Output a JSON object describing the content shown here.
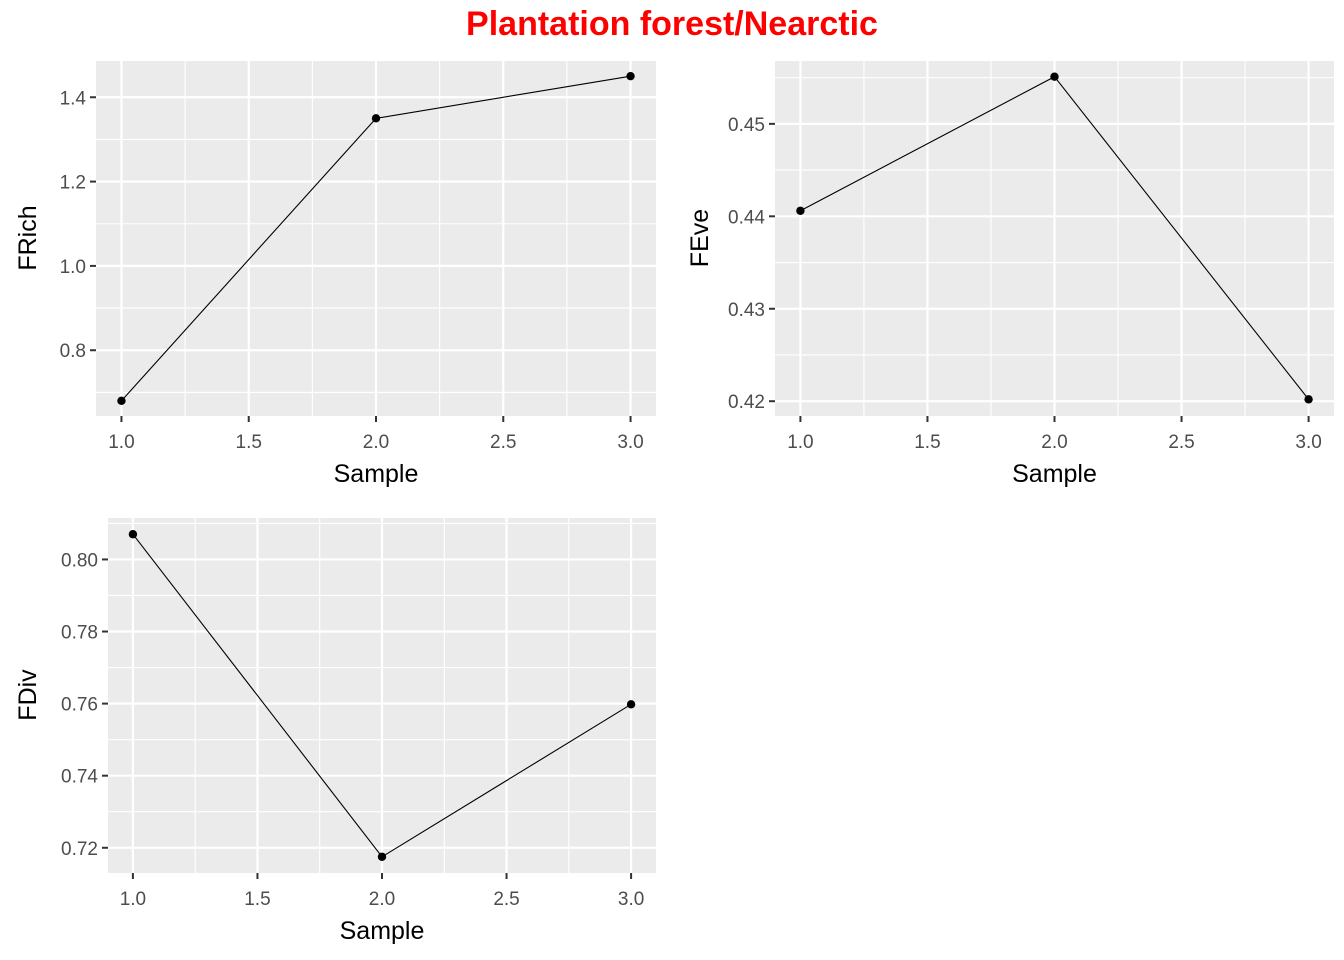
{
  "title": "Plantation forest/Nearctic",
  "colors": {
    "title": "#FF0000",
    "panel_bg": "#EBEBEB",
    "grid": "#FFFFFF",
    "line": "#000000",
    "tick_text": "#4D4D4D"
  },
  "chart_data": [
    {
      "type": "line",
      "title": "",
      "xlabel": "Sample",
      "ylabel": "FRich",
      "x": [
        1.0,
        2.0,
        3.0
      ],
      "series": [
        {
          "values": [
            0.68,
            1.35,
            1.45
          ]
        }
      ],
      "xlim": [
        0.9,
        3.1
      ],
      "ylim": [
        0.644,
        1.486
      ],
      "xticks": [
        1.0,
        1.5,
        2.0,
        2.5,
        3.0
      ],
      "xtick_labels": [
        "1.0",
        "1.5",
        "2.0",
        "2.5",
        "3.0"
      ],
      "yticks": [
        0.8,
        1.0,
        1.2,
        1.4
      ],
      "ytick_labels": [
        "0.8",
        "1.0",
        "1.2",
        "1.4"
      ],
      "grid": true,
      "legend": "none"
    },
    {
      "type": "line",
      "title": "",
      "xlabel": "Sample",
      "ylabel": "FEve",
      "x": [
        1.0,
        2.0,
        3.0
      ],
      "series": [
        {
          "values": [
            0.4406,
            0.4551,
            0.4202
          ]
        }
      ],
      "xlim": [
        0.9,
        3.1
      ],
      "ylim": [
        0.4184,
        0.4568
      ],
      "xticks": [
        1.0,
        1.5,
        2.0,
        2.5,
        3.0
      ],
      "xtick_labels": [
        "1.0",
        "1.5",
        "2.0",
        "2.5",
        "3.0"
      ],
      "yticks": [
        0.42,
        0.43,
        0.44,
        0.45
      ],
      "ytick_labels": [
        "0.42",
        "0.43",
        "0.44",
        "0.45"
      ],
      "grid": true,
      "legend": "none"
    },
    {
      "type": "line",
      "title": "",
      "xlabel": "Sample",
      "ylabel": "FDiv",
      "x": [
        1.0,
        2.0,
        3.0
      ],
      "series": [
        {
          "values": [
            0.807,
            0.7175,
            0.7598
          ]
        }
      ],
      "xlim": [
        0.9,
        3.1
      ],
      "ylim": [
        0.713,
        0.8115
      ],
      "xticks": [
        1.0,
        1.5,
        2.0,
        2.5,
        3.0
      ],
      "xtick_labels": [
        "1.0",
        "1.5",
        "2.0",
        "2.5",
        "3.0"
      ],
      "yticks": [
        0.72,
        0.74,
        0.76,
        0.78,
        0.8
      ],
      "ytick_labels": [
        "0.72",
        "0.74",
        "0.76",
        "0.78",
        "0.80"
      ],
      "grid": true,
      "legend": "none"
    }
  ]
}
